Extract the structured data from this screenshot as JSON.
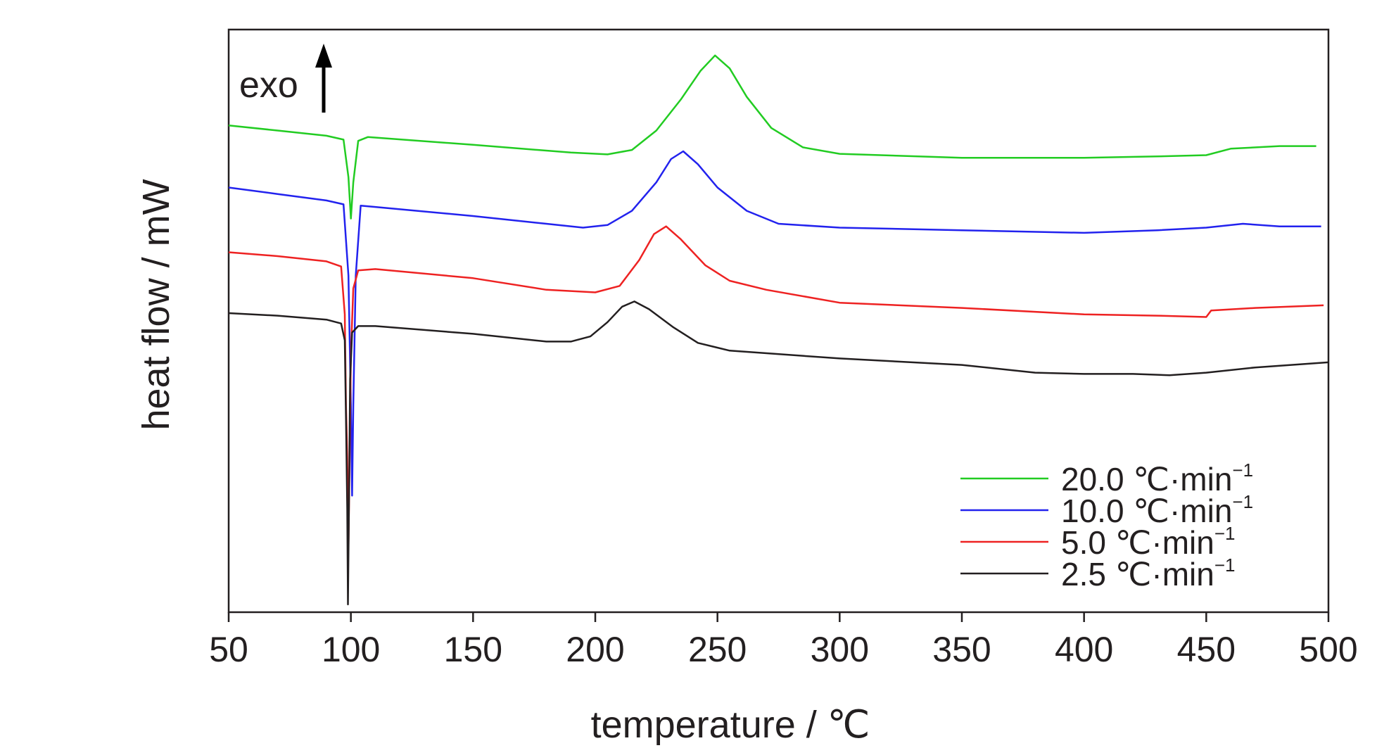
{
  "chart_data": {
    "type": "line",
    "xlabel": "temperature / ℃",
    "ylabel": "heat flow / mW",
    "xlim": [
      50,
      500
    ],
    "ylim": [
      -11,
      11.5
    ],
    "x_ticks": [
      50,
      100,
      150,
      200,
      250,
      300,
      350,
      400,
      450,
      500
    ],
    "y_tick_labels_shown": false,
    "grid": false,
    "legend_position": "bottom-right",
    "annotation": {
      "text": "exo",
      "arrow": "up"
    },
    "series": [
      {
        "name": "20.0 ℃·min",
        "superscript": "−1",
        "color": "#22cc22",
        "points": [
          [
            50,
            7.8
          ],
          [
            70,
            7.6
          ],
          [
            90,
            7.4
          ],
          [
            97,
            7.25
          ],
          [
            99,
            5.8
          ],
          [
            100,
            4.2
          ],
          [
            101,
            5.6
          ],
          [
            103,
            7.2
          ],
          [
            107,
            7.35
          ],
          [
            150,
            7.05
          ],
          [
            190,
            6.75
          ],
          [
            205,
            6.68
          ],
          [
            215,
            6.85
          ],
          [
            225,
            7.6
          ],
          [
            235,
            8.8
          ],
          [
            243,
            9.9
          ],
          [
            249,
            10.5
          ],
          [
            255,
            10.0
          ],
          [
            262,
            8.9
          ],
          [
            272,
            7.7
          ],
          [
            285,
            6.95
          ],
          [
            300,
            6.7
          ],
          [
            350,
            6.55
          ],
          [
            400,
            6.55
          ],
          [
            430,
            6.6
          ],
          [
            450,
            6.65
          ],
          [
            460,
            6.9
          ],
          [
            480,
            7.0
          ],
          [
            495,
            7.0
          ]
        ]
      },
      {
        "name": "10.0 ℃·min",
        "superscript": "−1",
        "color": "#2222ee",
        "points": [
          [
            50,
            5.4
          ],
          [
            70,
            5.15
          ],
          [
            90,
            4.9
          ],
          [
            97,
            4.75
          ],
          [
            99,
            2.0
          ],
          [
            100,
            -3.0
          ],
          [
            100.5,
            -6.5
          ],
          [
            101,
            -3.0
          ],
          [
            102,
            2.0
          ],
          [
            104,
            4.7
          ],
          [
            110,
            4.65
          ],
          [
            150,
            4.3
          ],
          [
            180,
            4.0
          ],
          [
            195,
            3.85
          ],
          [
            205,
            3.95
          ],
          [
            215,
            4.5
          ],
          [
            225,
            5.6
          ],
          [
            231,
            6.5
          ],
          [
            236,
            6.8
          ],
          [
            242,
            6.3
          ],
          [
            250,
            5.4
          ],
          [
            262,
            4.5
          ],
          [
            275,
            4.0
          ],
          [
            300,
            3.85
          ],
          [
            350,
            3.75
          ],
          [
            400,
            3.65
          ],
          [
            430,
            3.75
          ],
          [
            450,
            3.85
          ],
          [
            465,
            4.0
          ],
          [
            480,
            3.9
          ],
          [
            497,
            3.9
          ]
        ]
      },
      {
        "name": "5.0 ℃·min",
        "superscript": "−1",
        "color": "#ee2222",
        "points": [
          [
            50,
            2.9
          ],
          [
            70,
            2.75
          ],
          [
            90,
            2.55
          ],
          [
            96,
            2.35
          ],
          [
            97.5,
            0.5
          ],
          [
            98,
            -3.0
          ],
          [
            98.5,
            -5.0
          ],
          [
            99,
            -8.5
          ],
          [
            99.5,
            -5.0
          ],
          [
            100,
            -1.0
          ],
          [
            101,
            1.5
          ],
          [
            103,
            2.2
          ],
          [
            110,
            2.25
          ],
          [
            150,
            1.9
          ],
          [
            180,
            1.45
          ],
          [
            200,
            1.35
          ],
          [
            210,
            1.6
          ],
          [
            218,
            2.6
          ],
          [
            224,
            3.6
          ],
          [
            229,
            3.9
          ],
          [
            235,
            3.4
          ],
          [
            245,
            2.4
          ],
          [
            255,
            1.8
          ],
          [
            270,
            1.45
          ],
          [
            300,
            0.95
          ],
          [
            350,
            0.75
          ],
          [
            400,
            0.5
          ],
          [
            430,
            0.45
          ],
          [
            450,
            0.4
          ],
          [
            452,
            0.65
          ],
          [
            470,
            0.75
          ],
          [
            498,
            0.85
          ]
        ]
      },
      {
        "name": "2.5 ℃·min",
        "superscript": "−1",
        "color": "#231f20",
        "points": [
          [
            50,
            0.55
          ],
          [
            70,
            0.45
          ],
          [
            90,
            0.3
          ],
          [
            96,
            0.15
          ],
          [
            97.5,
            -0.5
          ],
          [
            98,
            -3.5
          ],
          [
            98.5,
            -7.0
          ],
          [
            98.8,
            -10.7
          ],
          [
            99.2,
            -7.0
          ],
          [
            99.7,
            -2.0
          ],
          [
            100.5,
            -0.2
          ],
          [
            103,
            0.05
          ],
          [
            110,
            0.05
          ],
          [
            150,
            -0.25
          ],
          [
            180,
            -0.55
          ],
          [
            190,
            -0.55
          ],
          [
            198,
            -0.35
          ],
          [
            205,
            0.2
          ],
          [
            211,
            0.8
          ],
          [
            216,
            1.0
          ],
          [
            222,
            0.7
          ],
          [
            232,
            0.0
          ],
          [
            242,
            -0.6
          ],
          [
            255,
            -0.9
          ],
          [
            300,
            -1.2
          ],
          [
            350,
            -1.45
          ],
          [
            380,
            -1.75
          ],
          [
            400,
            -1.8
          ],
          [
            420,
            -1.8
          ],
          [
            435,
            -1.85
          ],
          [
            450,
            -1.75
          ],
          [
            470,
            -1.55
          ],
          [
            500,
            -1.35
          ]
        ]
      }
    ]
  }
}
